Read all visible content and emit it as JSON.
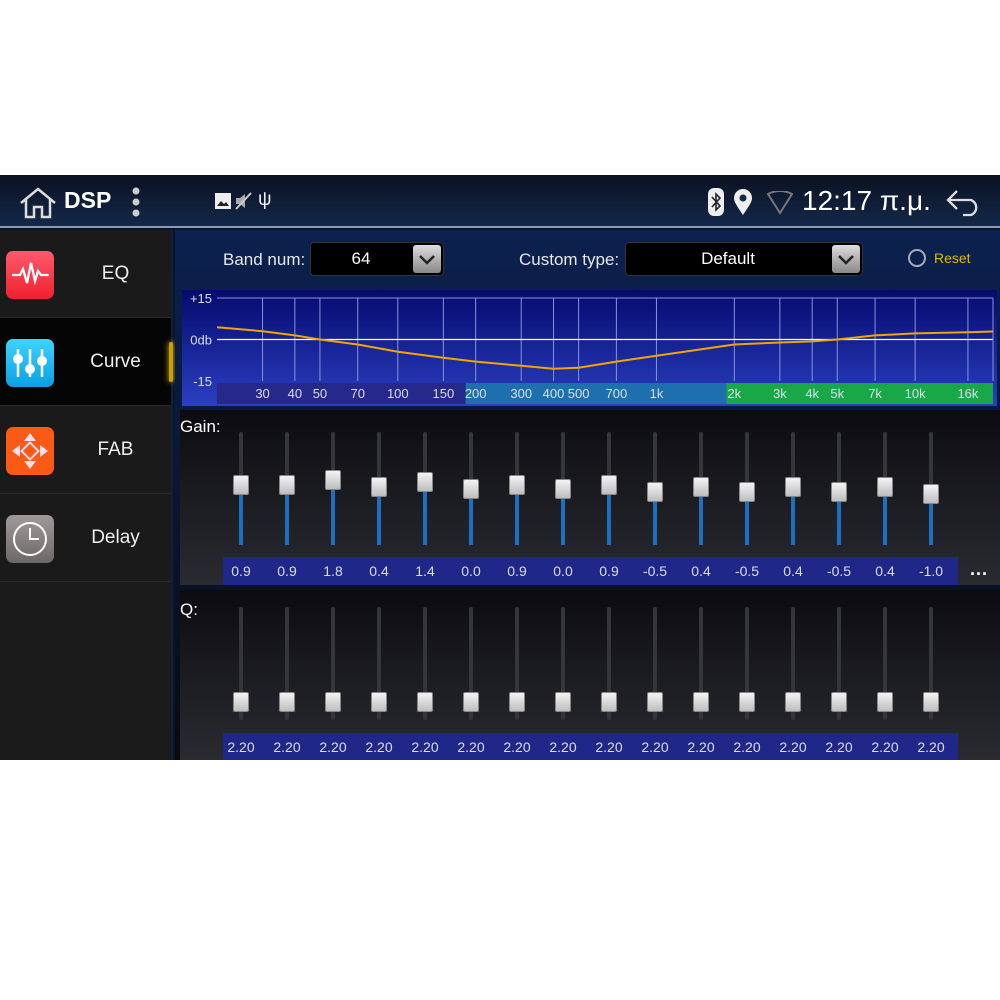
{
  "status_bar": {
    "title": "DSP",
    "time": "12:17 π.μ.",
    "icons": [
      "home-icon",
      "more-vertical-icon",
      "image-icon",
      "volume-mute-icon",
      "usb-icon",
      "bluetooth-icon",
      "location-icon",
      "wifi-icon",
      "back-icon"
    ]
  },
  "sidebar": {
    "items": [
      {
        "label": "EQ",
        "icon": "waveform-icon",
        "color": "#f5334a",
        "selected": false
      },
      {
        "label": "Curve",
        "icon": "sliders-icon",
        "color": "#19b6ef",
        "selected": true
      },
      {
        "label": "FAB",
        "icon": "fader-balance-icon",
        "color": "#fb5a16",
        "selected": false
      },
      {
        "label": "Delay",
        "icon": "clock-icon",
        "color": "#8a8585",
        "selected": false
      }
    ]
  },
  "controls": {
    "band_num_label": "Band num:",
    "band_num_value": "64",
    "custom_type_label": "Custom type:",
    "custom_type_value": "Default",
    "reset_label": "Reset",
    "reset_checked": false
  },
  "chart_data": {
    "type": "line",
    "x_scale": "log",
    "xlim": [
      20,
      20000
    ],
    "ylim": [
      -15,
      15
    ],
    "y_tick_labels": [
      "+15",
      "0db",
      "-15"
    ],
    "x_tick_labels": [
      "30",
      "40",
      "50",
      "70",
      "100",
      "150",
      "200",
      "300",
      "400",
      "500",
      "700",
      "1k",
      "2k",
      "3k",
      "4k",
      "5k",
      "7k",
      "10k",
      "16k"
    ],
    "x_ticks": [
      30,
      40,
      50,
      70,
      100,
      150,
      200,
      300,
      400,
      500,
      700,
      1000,
      2000,
      3000,
      4000,
      5000,
      7000,
      10000,
      16000
    ],
    "grid": true,
    "series": [
      {
        "color": "#f0a500",
        "points": [
          [
            20,
            4.4
          ],
          [
            30,
            3.0
          ],
          [
            40,
            1.5
          ],
          [
            50,
            0
          ],
          [
            70,
            -1.8
          ],
          [
            100,
            -4.4
          ],
          [
            150,
            -6.6
          ],
          [
            200,
            -8
          ],
          [
            300,
            -9.5
          ],
          [
            400,
            -10.6
          ],
          [
            500,
            -10.2
          ],
          [
            700,
            -8
          ],
          [
            1000,
            -5.9
          ],
          [
            2000,
            -1.8
          ],
          [
            3000,
            -1.1
          ],
          [
            4000,
            -0.7
          ],
          [
            5000,
            0
          ],
          [
            7000,
            1.5
          ],
          [
            10000,
            2.2
          ],
          [
            16000,
            2.6
          ],
          [
            20000,
            2.9
          ]
        ]
      }
    ]
  },
  "gain": {
    "label": "Gain:",
    "values": [
      "0.9",
      "0.9",
      "1.8",
      "0.4",
      "1.4",
      "0.0",
      "0.9",
      "0.0",
      "0.9",
      "-0.5",
      "0.4",
      "-0.5",
      "0.4",
      "-0.5",
      "0.4",
      "-1.0"
    ],
    "more_label": "..."
  },
  "q": {
    "label": "Q:",
    "values": [
      "2.20",
      "2.20",
      "2.20",
      "2.20",
      "2.20",
      "2.20",
      "2.20",
      "2.20",
      "2.20",
      "2.20",
      "2.20",
      "2.20",
      "2.20",
      "2.20",
      "2.20",
      "2.20"
    ]
  },
  "colors": {
    "accent": "#f0a500",
    "value_band": "#1f2889",
    "slider_fill": "#1d6fc0"
  }
}
